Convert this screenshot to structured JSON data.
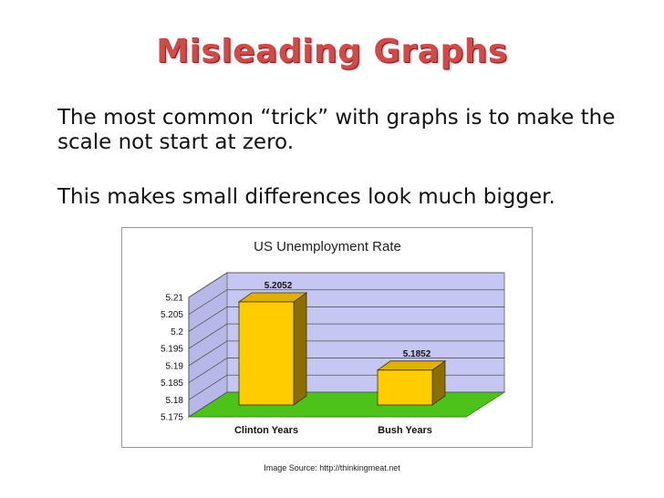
{
  "slide": {
    "title": "Misleading Graphs",
    "bullet_1": "The most common “trick” with graphs is to make the scale not start at zero.",
    "bullet_2": "This makes small differences look much bigger.",
    "source": "Image Source: http://thinkingmeat.net"
  },
  "colors": {
    "title": "#d14a4a",
    "wall": "#c6c6f2",
    "floor": "#4cc21a",
    "bar_front": "#ffcc00",
    "bar_side": "#8a6e00",
    "bar_top": "#e0b000"
  },
  "chart_data": {
    "type": "bar",
    "title": "US Unemployment Rate",
    "xlabel": "",
    "ylabel": "",
    "categories": [
      "Clinton Years",
      "Bush Years"
    ],
    "values": [
      5.2052,
      5.1852
    ],
    "value_labels": [
      "5.2052",
      "5.1852"
    ],
    "ylim": [
      5.175,
      5.21
    ],
    "yticks": [
      5.21,
      5.205,
      5.2,
      5.195,
      5.19,
      5.185,
      5.18,
      5.175
    ],
    "ytick_labels": [
      "5.21",
      "5.205",
      "5.2",
      "5.195",
      "5.19",
      "5.185",
      "5.18",
      "5.175"
    ],
    "grid": true,
    "legend": "none",
    "style": "3d"
  }
}
